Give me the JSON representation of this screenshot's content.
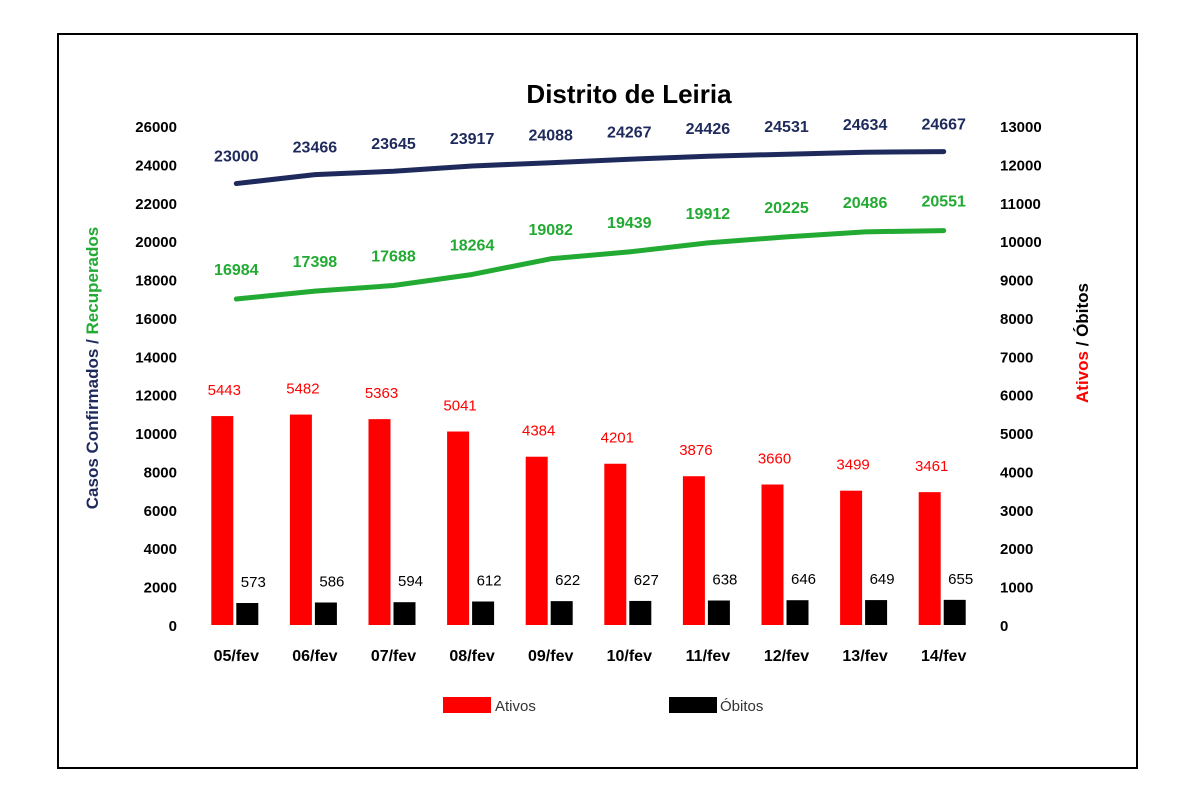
{
  "chart_data": {
    "type": "bar",
    "title": "Distrito de Leiria",
    "categories": [
      "05/fev",
      "06/fev",
      "07/fev",
      "08/fev",
      "09/fev",
      "10/fev",
      "11/fev",
      "12/fev",
      "13/fev",
      "14/fev"
    ],
    "left_axis": {
      "label_part1": "Casos Confirmados",
      "label_sep": " / ",
      "label_part2": "Recuperados",
      "ylim": [
        0,
        26000
      ],
      "ticks": [
        0,
        2000,
        4000,
        6000,
        8000,
        10000,
        12000,
        14000,
        16000,
        18000,
        20000,
        22000,
        24000,
        26000
      ]
    },
    "right_axis": {
      "label_part1": "Ativos",
      "label_sep": " / ",
      "label_part2": "Óbitos",
      "ylim": [
        0,
        13000
      ],
      "ticks": [
        0,
        1000,
        2000,
        3000,
        4000,
        5000,
        6000,
        7000,
        8000,
        9000,
        10000,
        11000,
        12000,
        13000
      ]
    },
    "lines": [
      {
        "axis": "left",
        "color": "#1f2a5c",
        "values": [
          23000,
          23466,
          23645,
          23917,
          24088,
          24267,
          24426,
          24531,
          24634,
          24667
        ]
      },
      {
        "axis": "left",
        "color": "#22aa33",
        "values": [
          16984,
          17398,
          17688,
          18264,
          19082,
          19439,
          19912,
          20225,
          20486,
          20551
        ]
      }
    ],
    "bars": [
      {
        "name": "Ativos",
        "axis": "right",
        "color": "#ff0000",
        "values": [
          5443,
          5482,
          5363,
          5041,
          4384,
          4201,
          3876,
          3660,
          3499,
          3461
        ]
      },
      {
        "name": "Óbitos",
        "axis": "right",
        "color": "#000000",
        "values": [
          573,
          586,
          594,
          612,
          622,
          627,
          638,
          646,
          649,
          655
        ]
      }
    ],
    "legend": [
      "Ativos",
      "Óbitos"
    ],
    "legend_position": "bottom",
    "grid": true
  }
}
